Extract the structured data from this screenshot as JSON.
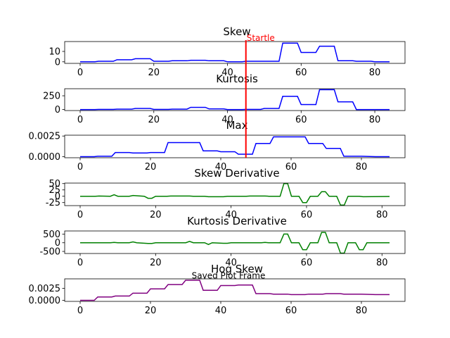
{
  "chart_data": [
    {
      "type": "line",
      "title": "Skew",
      "color": "#0000ff",
      "xlim": [
        -4.2,
        88.2
      ],
      "ylim": [
        -1.5,
        19.5
      ],
      "xticks": [
        0,
        20,
        40,
        60,
        80
      ],
      "yticks": [
        0,
        10
      ],
      "x": [
        0,
        4,
        5,
        9,
        10,
        14,
        15,
        19,
        20,
        24,
        25,
        29,
        30,
        34,
        35,
        39,
        40,
        44,
        45,
        49,
        50,
        54,
        55,
        59,
        60,
        64,
        65,
        69,
        70,
        74,
        75,
        79,
        80,
        84
      ],
      "y": [
        0,
        0,
        0.5,
        0.5,
        2,
        2,
        3,
        3,
        0.5,
        0.5,
        1,
        1,
        1.5,
        1.5,
        1,
        1,
        0,
        0,
        0.5,
        0.5,
        0.5,
        0.5,
        18,
        18,
        9,
        9,
        15,
        15,
        1,
        1,
        0.5,
        0.5,
        0,
        0
      ],
      "annotation": {
        "label": "Startle",
        "x": 45,
        "color": "#ff0000"
      }
    },
    {
      "type": "line",
      "title": "Kurtosis",
      "color": "#0000ff",
      "xlim": [
        -4.2,
        88.2
      ],
      "ylim": [
        -18,
        378
      ],
      "xticks": [
        0,
        20,
        40,
        60,
        80
      ],
      "yticks": [
        0,
        250
      ],
      "x": [
        0,
        4,
        5,
        9,
        10,
        14,
        15,
        19,
        20,
        24,
        25,
        29,
        30,
        34,
        35,
        39,
        40,
        44,
        45,
        49,
        50,
        54,
        55,
        59,
        60,
        64,
        65,
        69,
        70,
        74,
        75,
        79,
        80,
        84
      ],
      "y": [
        0,
        0,
        2,
        2,
        8,
        8,
        20,
        20,
        3,
        3,
        8,
        8,
        40,
        40,
        12,
        12,
        0,
        0,
        3,
        3,
        20,
        20,
        240,
        240,
        90,
        90,
        360,
        360,
        140,
        140,
        0,
        0,
        0,
        0
      ]
    },
    {
      "type": "line",
      "title": "Max",
      "color": "#0000ff",
      "xlim": [
        -4.4,
        92.4
      ],
      "ylim": [
        -0.00013,
        0.0026
      ],
      "xticks": [
        0,
        20,
        40,
        60,
        80
      ],
      "yticks": [
        0.0,
        0.0025
      ],
      "x": [
        0,
        4,
        5,
        9,
        10,
        14,
        15,
        19,
        20,
        24,
        25,
        29,
        30,
        34,
        35,
        39,
        40,
        44,
        45,
        49,
        50,
        54,
        55,
        59,
        60,
        64,
        65,
        69,
        70,
        74,
        75,
        79,
        80,
        84,
        88
      ],
      "y": [
        0.0,
        0.0,
        5e-05,
        5e-05,
        0.0005,
        0.0005,
        0.00045,
        0.00045,
        0.0005,
        0.0005,
        0.0017,
        0.0017,
        0.0017,
        0.0017,
        0.0007,
        0.0007,
        0.0006,
        0.0006,
        0.0003,
        0.0003,
        0.0016,
        0.0016,
        0.0024,
        0.0024,
        0.0024,
        0.0024,
        0.0016,
        0.0016,
        0.001,
        0.001,
        5e-05,
        5e-05,
        5e-05,
        0.0,
        0.0
      ]
    },
    {
      "type": "line",
      "title": "Skew Derivative",
      "color": "#008000",
      "xlim": [
        -4.1,
        86.1
      ],
      "ylim": [
        -37,
        52
      ],
      "xticks": [
        0,
        20,
        40,
        60,
        80
      ],
      "yticks": [
        -25,
        0,
        25,
        50
      ],
      "x": [
        0,
        4,
        5,
        8,
        9,
        10,
        13,
        14,
        17,
        18,
        19,
        20,
        23,
        24,
        29,
        30,
        33,
        34,
        38,
        39,
        44,
        45,
        49,
        50,
        53,
        54,
        55,
        56,
        58,
        59,
        60,
        61,
        63,
        64,
        65,
        66,
        68,
        69,
        70,
        71,
        74,
        75,
        82
      ],
      "y": [
        0,
        0,
        1,
        0,
        6,
        0,
        0,
        3,
        0,
        -8,
        -8,
        0,
        0,
        1,
        1,
        0,
        0,
        -2,
        -2,
        0,
        0,
        1,
        1,
        0,
        0,
        50,
        50,
        0,
        0,
        -25,
        -25,
        0,
        0,
        18,
        18,
        0,
        0,
        -35,
        -35,
        0,
        0,
        -2,
        -1
      ]
    },
    {
      "type": "line",
      "title": "Kurtosis Derivative",
      "color": "#008000",
      "xlim": [
        -4.1,
        86.1
      ],
      "ylim": [
        -620,
        680
      ],
      "xticks": [
        0,
        20,
        40,
        60,
        80
      ],
      "yticks": [
        -500,
        0,
        500
      ],
      "x": [
        0,
        8,
        9,
        10,
        13,
        14,
        15,
        18,
        19,
        20,
        28,
        29,
        30,
        33,
        34,
        35,
        38,
        39,
        40,
        48,
        49,
        50,
        53,
        54,
        55,
        56,
        58,
        59,
        60,
        61,
        63,
        64,
        65,
        66,
        68,
        69,
        70,
        71,
        73,
        74,
        75,
        76,
        82
      ],
      "y": [
        0,
        0,
        20,
        0,
        0,
        50,
        0,
        -40,
        -40,
        0,
        0,
        80,
        0,
        0,
        -100,
        0,
        -30,
        -30,
        0,
        0,
        20,
        0,
        0,
        500,
        500,
        0,
        0,
        -400,
        -400,
        0,
        0,
        600,
        600,
        0,
        0,
        -600,
        -600,
        0,
        0,
        -400,
        -400,
        0,
        0
      ]
    },
    {
      "type": "line",
      "title": "Hog Skew",
      "color": "#800080",
      "xlim": [
        -4.4,
        92.4
      ],
      "ylim": [
        -0.00022,
        0.0045
      ],
      "xticks": [
        0,
        20,
        40,
        60,
        80
      ],
      "yticks": [
        0.0,
        0.0025
      ],
      "x": [
        0,
        4,
        5,
        9,
        10,
        14,
        15,
        19,
        20,
        24,
        25,
        29,
        30,
        34,
        35,
        39,
        40,
        44,
        45,
        49,
        50,
        54,
        55,
        59,
        60,
        64,
        65,
        69,
        70,
        74,
        75,
        79,
        80,
        84,
        88
      ],
      "y": [
        0.0,
        0.0,
        0.0007,
        0.0007,
        0.0009,
        0.0009,
        0.0015,
        0.0015,
        0.0024,
        0.0024,
        0.0033,
        0.0033,
        0.0042,
        0.0042,
        0.0021,
        0.0021,
        0.0031,
        0.0031,
        0.0032,
        0.0032,
        0.0014,
        0.0014,
        0.0013,
        0.0013,
        0.0012,
        0.0012,
        0.0013,
        0.0013,
        0.0014,
        0.0014,
        0.0013,
        0.0013,
        0.0013,
        0.0012,
        0.0012
      ],
      "caption": "Saved Plot Frame"
    }
  ]
}
